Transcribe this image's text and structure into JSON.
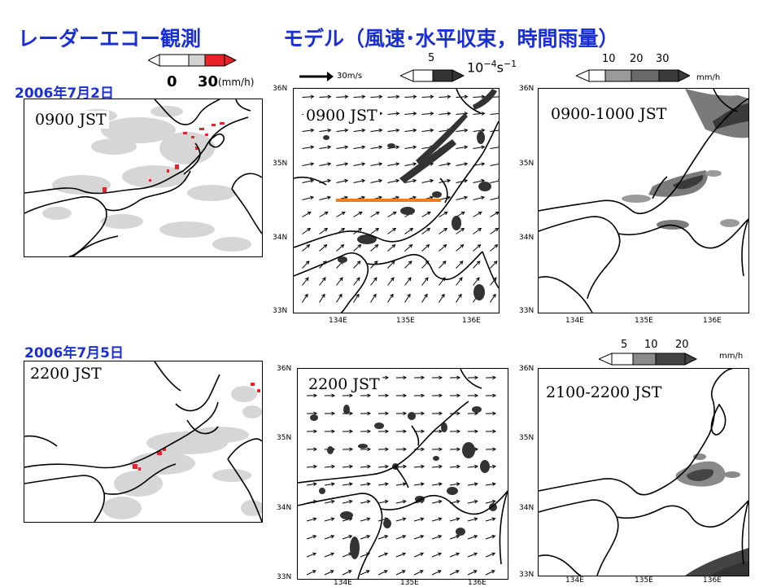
{
  "titles": {
    "radar": "レーダーエコー観測",
    "model": "モデル（風速･水平収束，時間雨量）"
  },
  "legends": {
    "radar": {
      "min": "0",
      "max": "30",
      "unit": "(mm/h)",
      "colors": [
        "#ffffff",
        "#d3d3d3",
        "#e8242a"
      ]
    },
    "wind": {
      "label": "30m/s"
    },
    "convergence": {
      "value": "5",
      "unit_base": "10",
      "unit_exp": "−4",
      "unit_s": "s",
      "unit_exp2": "−1"
    },
    "rain_top": {
      "values": [
        "10",
        "20",
        "30"
      ],
      "unit": "mm/h"
    },
    "rain_bottom": {
      "values": [
        "5",
        "10",
        "20"
      ],
      "unit": "mm/h"
    }
  },
  "dates": {
    "first": "2006年7月2日",
    "second": "2006年7月5日"
  },
  "panels": {
    "row1": {
      "radar_time": "0900 JST",
      "model_time": "0900 JST",
      "rain_time": "0900-1000 JST"
    },
    "row2": {
      "radar_time": "2200 JST",
      "model_time": "2200 JST",
      "rain_time": "2100-2200 JST"
    }
  },
  "axes": {
    "lat_labels": [
      "36N",
      "35N",
      "34N",
      "33N"
    ],
    "lon_labels": [
      "134E",
      "135E",
      "136E"
    ]
  },
  "colors": {
    "title_blue": "#1a2fd6",
    "echo_gray": "#d3d3d3",
    "echo_red": "#e8242a",
    "section_line": "#f07d1a",
    "rain_dark": "#555555"
  }
}
